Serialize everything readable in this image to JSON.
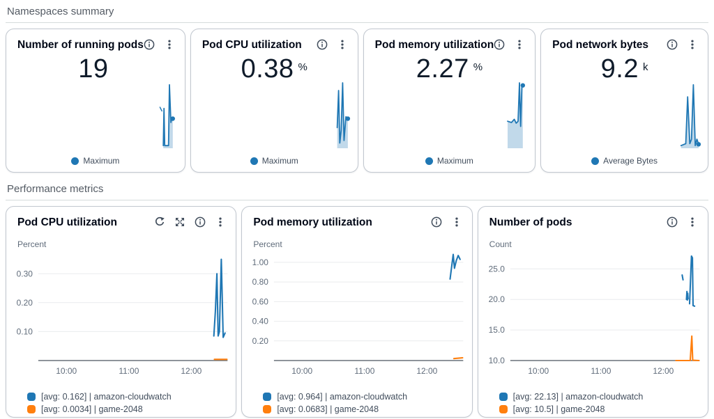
{
  "sections": [
    {
      "title": "Namespaces summary"
    },
    {
      "title": "Performance metrics"
    }
  ],
  "colors": {
    "series_blue": "#1f77b4",
    "series_orange": "#ff7f0e",
    "grid": "#e9ebed",
    "axis": "#687078",
    "text_primary": "#0f1b2a",
    "text_secondary": "#5f6b7a"
  },
  "summary_cards": [
    {
      "title": "Number of running pods",
      "value": "19",
      "unit": "",
      "header_icons": [
        "info-icon",
        "ellipsis-icon"
      ],
      "legend_label": "Maximum",
      "legend_color": "#1f77b4",
      "spark": {
        "color": "#1f77b4",
        "segments": [
          [
            [
              0.16,
              0.62
            ],
            [
              0.24,
              0.56
            ]
          ],
          [
            [
              0.3,
              0.02
            ],
            [
              0.33,
              0.6
            ],
            [
              0.36,
              0.02
            ],
            [
              0.52,
              0.02
            ],
            [
              0.56,
              0.97
            ],
            [
              0.62,
              0.38
            ],
            [
              0.66,
              0.46
            ],
            [
              0.7,
              0.44
            ]
          ]
        ],
        "end_dot": true
      }
    },
    {
      "title": "Pod CPU utilization",
      "value": "0.38",
      "unit": "%",
      "header_icons": [
        "info-icon",
        "ellipsis-icon"
      ],
      "legend_label": "Maximum",
      "legend_color": "#1f77b4",
      "spark": {
        "color": "#1f77b4",
        "segments": [
          [
            [
              0.34,
              0.3
            ],
            [
              0.4,
              0.88
            ],
            [
              0.45,
              0.06
            ],
            [
              0.51,
              0.26
            ],
            [
              0.57,
              1.0
            ],
            [
              0.63,
              0.1
            ],
            [
              0.71,
              0.47
            ],
            [
              0.79,
              0.44
            ]
          ]
        ],
        "end_dot": true
      }
    },
    {
      "title": "Pod memory utilization",
      "value": "2.27",
      "unit": "%",
      "header_icons": [
        "info-icon",
        "ellipsis-icon"
      ],
      "legend_label": "Maximum",
      "legend_color": "#1f77b4",
      "spark": {
        "color": "#1f77b4",
        "segments": [
          [
            [
              0.06,
              0.4
            ],
            [
              0.22,
              0.38
            ],
            [
              0.34,
              0.43
            ],
            [
              0.42,
              0.37
            ],
            [
              0.5,
              0.4
            ],
            [
              0.56,
              1.0
            ],
            [
              0.61,
              0.32
            ],
            [
              0.66,
              0.93
            ],
            [
              0.7,
              0.96
            ]
          ]
        ],
        "end_dot": true
      }
    },
    {
      "title": "Pod network bytes",
      "value": "9.2",
      "unit": "k",
      "header_icons": [
        "info-icon",
        "ellipsis-icon"
      ],
      "legend_label": "Average Bytes",
      "legend_color": "#1f77b4",
      "spark": {
        "color": "#1f77b4",
        "segments": [
          [
            [
              0.08,
              0.02
            ],
            [
              0.28,
              0.05
            ],
            [
              0.36,
              0.78
            ],
            [
              0.45,
              0.05
            ],
            [
              0.52,
              0.12
            ],
            [
              0.6,
              0.97
            ],
            [
              0.68,
              0.02
            ],
            [
              0.75,
              0.12
            ],
            [
              0.82,
              0.04
            ]
          ]
        ],
        "end_dot": true
      }
    }
  ],
  "chart_data": [
    {
      "type": "line",
      "title": "Pod CPU utilization",
      "ylabel": "Percent",
      "header_icons": [
        "refresh-icon",
        "expand-icon",
        "info-icon",
        "ellipsis-icon"
      ],
      "xlim": [
        9.55,
        12.58
      ],
      "ylim": [
        0,
        0.38
      ],
      "grid": true,
      "legend_position": "bottom",
      "x_ticks": [
        {
          "v": 10,
          "label": "10:00"
        },
        {
          "v": 11,
          "label": "11:00"
        },
        {
          "v": 12,
          "label": "12:00"
        }
      ],
      "y_ticks": [
        {
          "v": 0.1,
          "label": "0.10"
        },
        {
          "v": 0.2,
          "label": "0.20"
        },
        {
          "v": 0.3,
          "label": "0.30"
        }
      ],
      "series": [
        {
          "name": "[avg: 0.162] | amazon-cloudwatch",
          "color": "#1f77b4",
          "segments": [
            [
              [
                12.36,
                0.085
              ],
              [
                12.385,
                0.17
              ],
              [
                12.41,
                0.3
              ],
              [
                12.43,
                0.085
              ],
              [
                12.45,
                0.1
              ],
              [
                12.48,
                0.35
              ],
              [
                12.51,
                0.08
              ],
              [
                12.54,
                0.095
              ]
            ]
          ]
        },
        {
          "name": "[avg: 0.0034] | game-2048",
          "color": "#ff7f0e",
          "segments": [
            [
              [
                12.37,
                0.004
              ],
              [
                12.57,
                0.004
              ]
            ]
          ]
        }
      ]
    },
    {
      "type": "line",
      "title": "Pod memory utilization",
      "ylabel": "Percent",
      "header_icons": [
        "info-icon",
        "ellipsis-icon"
      ],
      "xlim": [
        9.55,
        12.58
      ],
      "ylim": [
        0,
        1.12
      ],
      "grid": true,
      "legend_position": "bottom",
      "x_ticks": [
        {
          "v": 10,
          "label": "10:00"
        },
        {
          "v": 11,
          "label": "11:00"
        },
        {
          "v": 12,
          "label": "12:00"
        }
      ],
      "y_ticks": [
        {
          "v": 0.2,
          "label": "0.20"
        },
        {
          "v": 0.4,
          "label": "0.40"
        },
        {
          "v": 0.6,
          "label": "0.60"
        },
        {
          "v": 0.8,
          "label": "0.80"
        },
        {
          "v": 1.0,
          "label": "1.00"
        }
      ],
      "series": [
        {
          "name": "[avg: 0.964] | amazon-cloudwatch",
          "color": "#1f77b4",
          "segments": [
            [
              [
                12.37,
                0.83
              ],
              [
                12.42,
                1.08
              ],
              [
                12.44,
                0.94
              ],
              [
                12.47,
                1.02
              ],
              [
                12.5,
                1.07
              ],
              [
                12.53,
                1.03
              ]
            ]
          ]
        },
        {
          "name": "[avg: 0.0683] | game-2048",
          "color": "#ff7f0e",
          "segments": [
            [
              [
                12.43,
                0.02
              ],
              [
                12.57,
                0.028
              ]
            ]
          ]
        }
      ]
    },
    {
      "type": "line",
      "title": "Number of pods",
      "ylabel": "Count",
      "header_icons": [
        "info-icon",
        "ellipsis-icon"
      ],
      "xlim": [
        9.55,
        12.58
      ],
      "ylim": [
        10,
        28
      ],
      "grid": true,
      "legend_position": "bottom",
      "x_ticks": [
        {
          "v": 10,
          "label": "10:00"
        },
        {
          "v": 11,
          "label": "11:00"
        },
        {
          "v": 12,
          "label": "12:00"
        }
      ],
      "y_ticks": [
        {
          "v": 10,
          "label": "10.0"
        },
        {
          "v": 15,
          "label": "15.0"
        },
        {
          "v": 20,
          "label": "20.0"
        },
        {
          "v": 25,
          "label": "25.0"
        }
      ],
      "series": [
        {
          "name": "[avg: 22.13] | amazon-cloudwatch",
          "color": "#1f77b4",
          "segments": [
            [
              [
                12.3,
                24.0
              ],
              [
                12.315,
                23.2
              ]
            ],
            [
              [
                12.37,
                20.0
              ],
              [
                12.377,
                21.3
              ],
              [
                12.384,
                19.9
              ],
              [
                12.39,
                21.0
              ],
              [
                12.395,
                20.1
              ]
            ],
            [
              [
                12.42,
                19.3
              ],
              [
                12.45,
                27.1
              ],
              [
                12.465,
                26.8
              ],
              [
                12.475,
                19.0
              ],
              [
                12.5,
                18.9
              ]
            ]
          ]
        },
        {
          "name": "[avg: 10.5] | game-2048",
          "color": "#ff7f0e",
          "segments": [
            [
              [
                12.2,
                10.0
              ],
              [
                12.43,
                10.0
              ],
              [
                12.455,
                14.0
              ],
              [
                12.47,
                10.05
              ],
              [
                12.57,
                10.0
              ]
            ]
          ]
        }
      ]
    }
  ]
}
